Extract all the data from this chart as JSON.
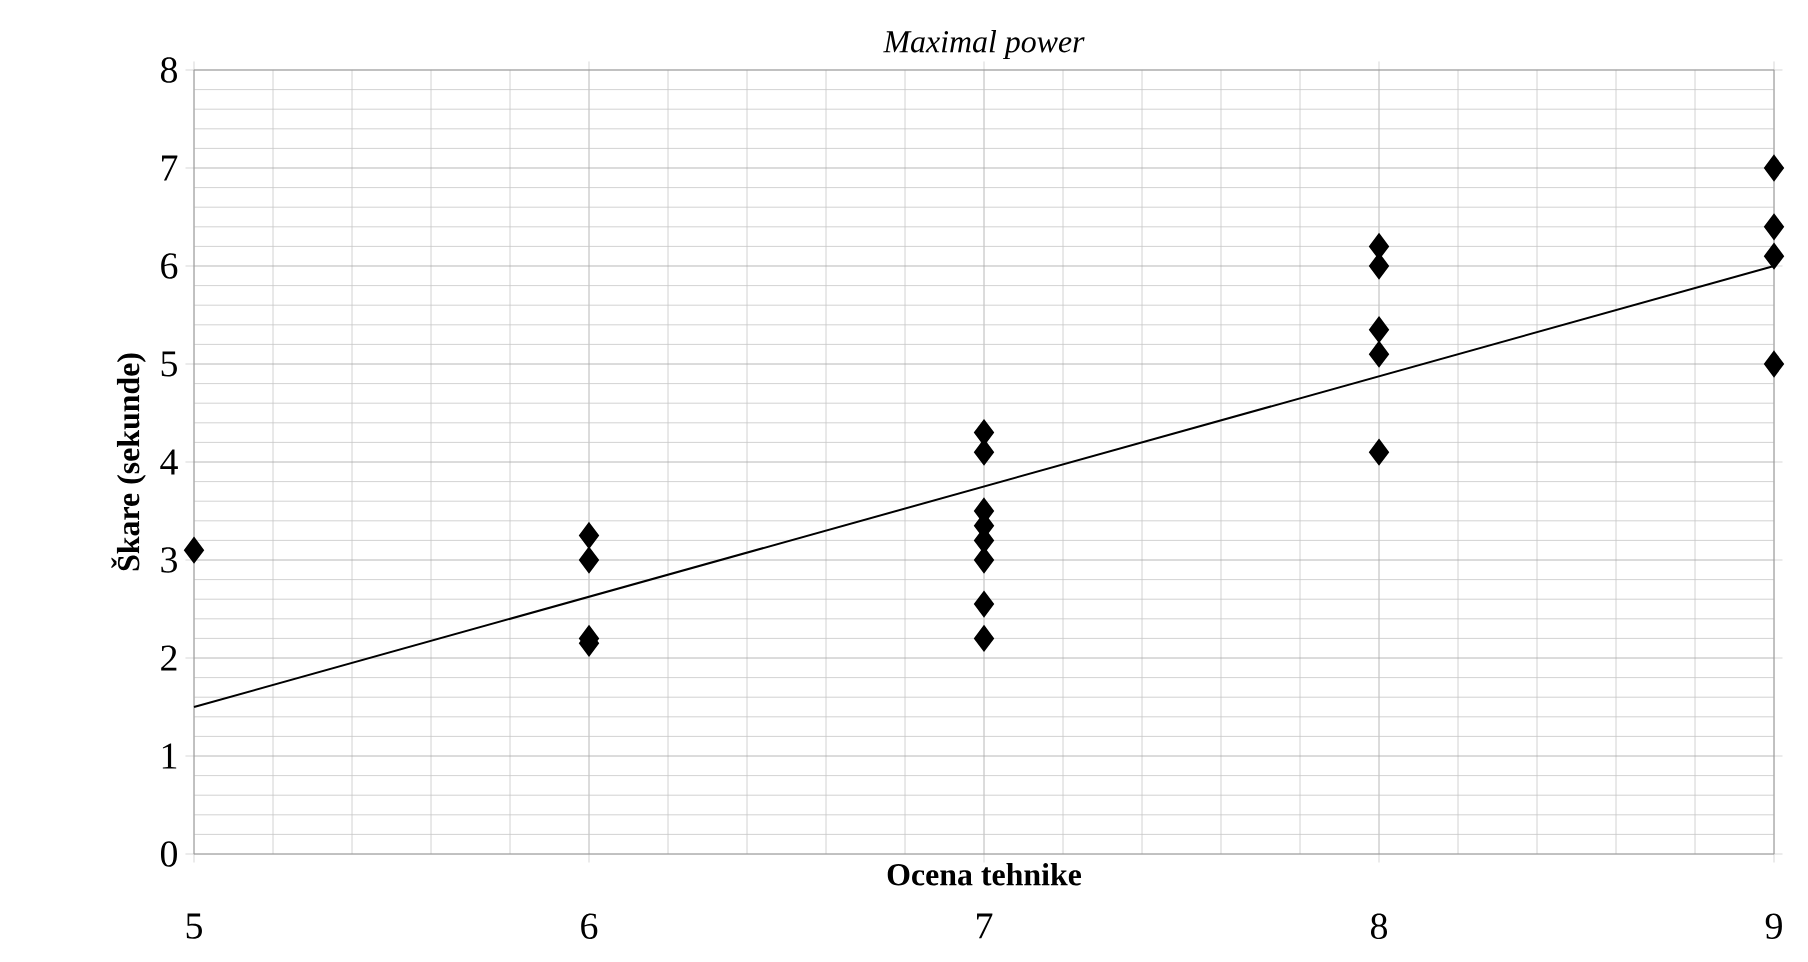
{
  "chart_data": {
    "type": "scatter",
    "title": "Maximal power",
    "xlabel": "Ocena tehnike",
    "ylabel": "Škare (sekunde)",
    "xlim": [
      5,
      9
    ],
    "ylim": [
      0,
      8
    ],
    "xticks": [
      5,
      6,
      7,
      8,
      9
    ],
    "yticks": [
      0,
      1,
      2,
      3,
      4,
      5,
      6,
      7,
      8
    ],
    "grid": true,
    "marker": "diamond",
    "series": [
      {
        "color": "#000000",
        "x": [
          5,
          6,
          6,
          6,
          6,
          7,
          7,
          7,
          7,
          7,
          7,
          7,
          7,
          8,
          8,
          8,
          8,
          8,
          9,
          9,
          9,
          9
        ],
        "values": [
          3.1,
          3.25,
          3.0,
          2.2,
          2.15,
          4.3,
          4.1,
          3.5,
          3.35,
          3.2,
          3.0,
          2.55,
          2.2,
          6.2,
          6.0,
          5.35,
          5.1,
          4.1,
          7.0,
          6.4,
          6.1,
          5.0
        ]
      },
      {
        "type": "line",
        "color": "#000000",
        "x": [
          5,
          9
        ],
        "values": [
          1.5,
          6.0
        ],
        "marker": "none"
      }
    ]
  }
}
